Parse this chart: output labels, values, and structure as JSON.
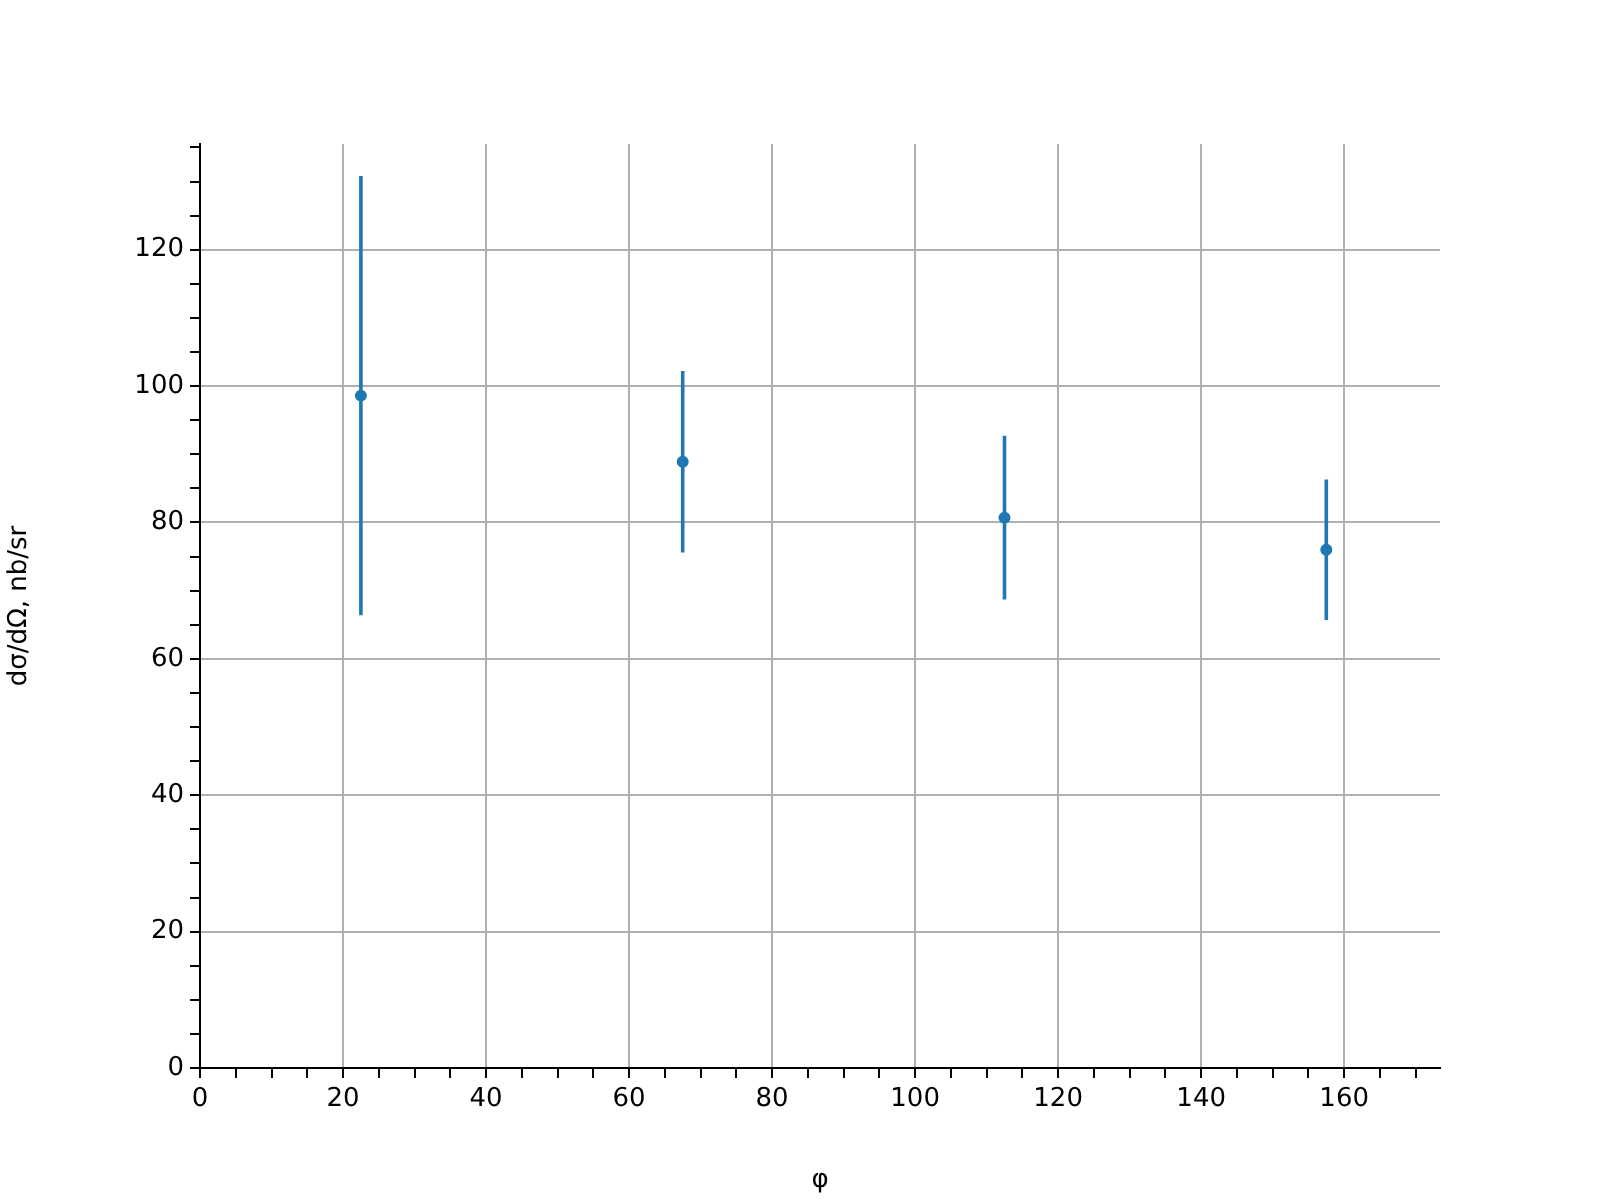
{
  "chart_data": {
    "type": "scatter",
    "xlabel": "φ",
    "ylabel": "dσ/dΩ, nb/sr",
    "x": [
      22.5,
      67.5,
      112.5,
      157.5
    ],
    "series": [
      {
        "color": "#1f77b4",
        "values": [
          98.6,
          88.9,
          80.7,
          76.0
        ],
        "errors": [
          32.2,
          13.3,
          12.0,
          10.3
        ]
      }
    ],
    "marker": "circle",
    "grid": true,
    "xlim": [
      0,
      173.4
    ],
    "ylim": [
      0,
      135.5
    ],
    "xticks": [
      0,
      {
        "value": 5,
        "label": null
      },
      {
        "value": 10,
        "label": null
      },
      {
        "value": 15,
        "label": null
      },
      20,
      {
        "value": 25,
        "label": null
      },
      {
        "value": 30,
        "label": null
      },
      {
        "value": 35,
        "label": null
      },
      40,
      {
        "value": 45,
        "label": null
      },
      {
        "value": 50,
        "label": null
      },
      {
        "value": 55,
        "label": null
      },
      60,
      {
        "value": 65,
        "label": null
      },
      {
        "value": 70,
        "label": null
      },
      {
        "value": 75,
        "label": null
      },
      80,
      {
        "value": 85,
        "label": null
      },
      {
        "value": 90,
        "label": null
      },
      {
        "value": 95,
        "label": null
      },
      100,
      {
        "value": 105,
        "label": null
      },
      {
        "value": 110,
        "label": null
      },
      {
        "value": 115,
        "label": null
      },
      120,
      {
        "value": 125,
        "label": null
      },
      {
        "value": 130,
        "label": null
      },
      {
        "value": 135,
        "label": null
      },
      140,
      {
        "value": 145,
        "label": null
      },
      {
        "value": 150,
        "label": null
      },
      {
        "value": 155,
        "label": null
      },
      160,
      {
        "value": 165,
        "label": null
      },
      {
        "value": 170,
        "label": null
      }
    ],
    "yticks": [
      0,
      {
        "value": 5,
        "label": null
      },
      {
        "value": 10,
        "label": null
      },
      {
        "value": 15,
        "label": null
      },
      20,
      {
        "value": 25,
        "label": null
      },
      {
        "value": 30,
        "label": null
      },
      {
        "value": 35,
        "label": null
      },
      40,
      {
        "value": 45,
        "label": null
      },
      {
        "value": 50,
        "label": null
      },
      {
        "value": 55,
        "label": null
      },
      60,
      {
        "value": 65,
        "label": null
      },
      {
        "value": 70,
        "label": null
      },
      {
        "value": 75,
        "label": null
      },
      80,
      {
        "value": 85,
        "label": null
      },
      {
        "value": 90,
        "label": null
      },
      {
        "value": 95,
        "label": null
      },
      100,
      {
        "value": 105,
        "label": null
      },
      {
        "value": 110,
        "label": null
      },
      {
        "value": 115,
        "label": null
      },
      120,
      {
        "value": 125,
        "label": null
      },
      {
        "value": 130,
        "label": null
      },
      {
        "value": 135,
        "label": null
      }
    ]
  }
}
